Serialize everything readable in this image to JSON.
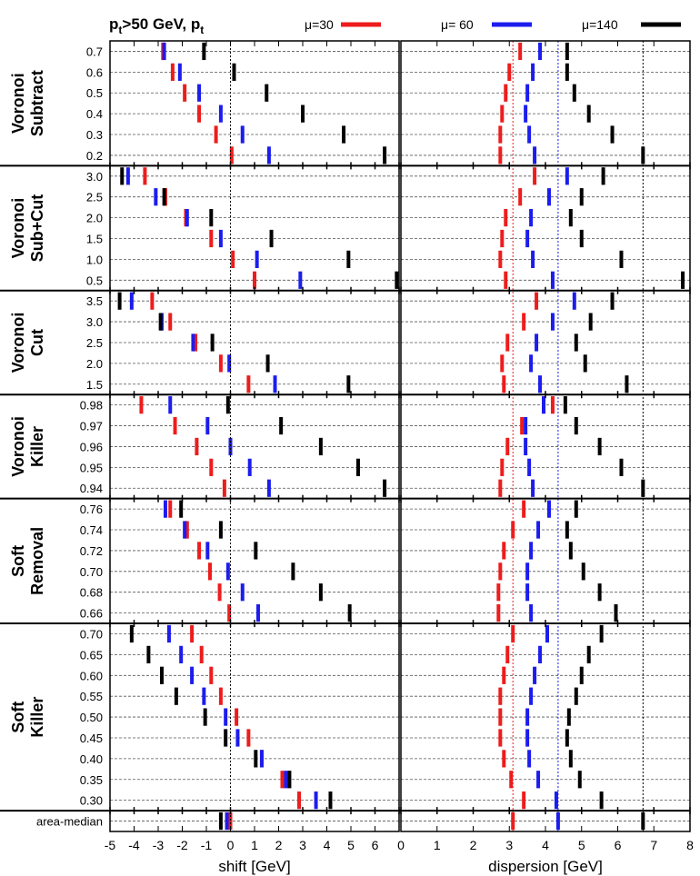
{
  "chart_data": {
    "type": "dot-plot",
    "title": "p_t>50 GeV, p_t",
    "title_main": "p",
    "title_sub1": "t",
    "title_mid": ">50 GeV, p",
    "title_sub2": "t",
    "legend": [
      {
        "label": "μ=30",
        "color": "#ee1c1c"
      },
      {
        "label": "μ= 60",
        "color": "#1c1cee"
      },
      {
        "label": "μ=140",
        "color": "#000000"
      }
    ],
    "panels": [
      {
        "name": "shift",
        "xlabel": "shift [GeV]",
        "xlim": [
          -5,
          7
        ],
        "tick_labels": [
          "-5",
          "-4",
          "-3",
          "-2",
          "-1",
          "0",
          "1",
          "2",
          "3",
          "4",
          "5",
          "6"
        ],
        "ref_lines": [
          {
            "x": 0,
            "color": "#000000"
          }
        ]
      },
      {
        "name": "dispersion",
        "xlabel": "dispersion [GeV]",
        "xlim": [
          0,
          8
        ],
        "tick_labels": [
          "0",
          "1",
          "2",
          "3",
          "4",
          "5",
          "6",
          "7",
          "8"
        ],
        "ref_lines": [
          {
            "x": 3.1,
            "color": "#ee1c1c"
          },
          {
            "x": 4.35,
            "color": "#1c1cee"
          },
          {
            "x": 6.7,
            "color": "#000000"
          }
        ]
      }
    ],
    "series": [
      {
        "name": "μ=30",
        "color": "#ee1c1c"
      },
      {
        "name": "μ= 60",
        "color": "#1c1cee"
      },
      {
        "name": "μ=140",
        "color": "#000000"
      }
    ],
    "groups": [
      {
        "label_lines": [
          "Voronoi",
          "Subtract"
        ],
        "rows": [
          {
            "param": "0.7",
            "shift": [
              -2.8,
              -2.75,
              -1.1
            ],
            "dispersion": [
              3.3,
              3.85,
              4.6
            ]
          },
          {
            "param": "0.6",
            "shift": [
              -2.4,
              -2.1,
              0.15
            ],
            "dispersion": [
              3.0,
              3.65,
              4.6
            ]
          },
          {
            "param": "0.5",
            "shift": [
              -1.9,
              -1.3,
              1.5
            ],
            "dispersion": [
              2.9,
              3.5,
              4.8
            ]
          },
          {
            "param": "0.4",
            "shift": [
              -1.3,
              -0.4,
              3.0
            ],
            "dispersion": [
              2.8,
              3.45,
              5.2
            ]
          },
          {
            "param": "0.3",
            "shift": [
              -0.6,
              0.5,
              4.7
            ],
            "dispersion": [
              2.75,
              3.55,
              5.85
            ]
          },
          {
            "param": "0.2",
            "shift": [
              0.05,
              1.6,
              6.4
            ],
            "dispersion": [
              2.75,
              3.7,
              6.7
            ]
          }
        ]
      },
      {
        "label_lines": [
          "Voronoi",
          "Sub+Cut"
        ],
        "rows": [
          {
            "param": "3.0",
            "shift": [
              -3.55,
              -4.25,
              -4.5
            ],
            "dispersion": [
              3.7,
              4.6,
              5.6
            ]
          },
          {
            "param": "2.5",
            "shift": [
              -2.7,
              -3.1,
              -2.75
            ],
            "dispersion": [
              3.3,
              4.1,
              5.0
            ]
          },
          {
            "param": "2.0",
            "shift": [
              -1.85,
              -1.8,
              -0.8
            ],
            "dispersion": [
              2.9,
              3.6,
              4.7
            ]
          },
          {
            "param": "1.5",
            "shift": [
              -0.8,
              -0.4,
              1.7
            ],
            "dispersion": [
              2.8,
              3.5,
              5.0
            ]
          },
          {
            "param": "1.0",
            "shift": [
              0.1,
              1.1,
              4.9
            ],
            "dispersion": [
              2.75,
              3.65,
              6.1
            ]
          },
          {
            "param": "0.5",
            "shift": [
              1.0,
              2.9,
              6.9
            ],
            "dispersion": [
              2.9,
              4.2,
              7.8
            ]
          }
        ]
      },
      {
        "label_lines": [
          "Voronoi",
          "Cut"
        ],
        "rows": [
          {
            "param": "3.5",
            "shift": [
              -3.25,
              -4.1,
              -4.6
            ],
            "dispersion": [
              3.75,
              4.8,
              5.85
            ]
          },
          {
            "param": "3.0",
            "shift": [
              -2.5,
              -2.85,
              -2.9
            ],
            "dispersion": [
              3.4,
              4.2,
              5.25
            ]
          },
          {
            "param": "2.5",
            "shift": [
              -1.45,
              -1.55,
              -0.75
            ],
            "dispersion": [
              2.95,
              3.75,
              4.85
            ]
          },
          {
            "param": "2.0",
            "shift": [
              -0.4,
              -0.05,
              1.55
            ],
            "dispersion": [
              2.8,
              3.6,
              5.1
            ]
          },
          {
            "param": "1.5",
            "shift": [
              0.75,
              1.85,
              4.9
            ],
            "dispersion": [
              2.85,
              3.85,
              6.25
            ]
          }
        ]
      },
      {
        "label_lines": [
          "Voronoi",
          "Killer"
        ],
        "rows": [
          {
            "param": "0.98",
            "shift": [
              -3.7,
              -2.5,
              -0.1
            ],
            "dispersion": [
              4.2,
              3.95,
              4.55
            ]
          },
          {
            "param": "0.97",
            "shift": [
              -2.3,
              -0.95,
              2.1
            ],
            "dispersion": [
              3.35,
              3.45,
              4.85
            ]
          },
          {
            "param": "0.96",
            "shift": [
              -1.4,
              0.0,
              3.75
            ],
            "dispersion": [
              2.95,
              3.45,
              5.5
            ]
          },
          {
            "param": "0.95",
            "shift": [
              -0.8,
              0.8,
              5.3
            ],
            "dispersion": [
              2.8,
              3.55,
              6.1
            ]
          },
          {
            "param": "0.94",
            "shift": [
              -0.25,
              1.6,
              6.4
            ],
            "dispersion": [
              2.75,
              3.65,
              6.7
            ]
          }
        ]
      },
      {
        "label_lines": [
          "Soft",
          "Removal"
        ],
        "rows": [
          {
            "param": "0.76",
            "shift": [
              -2.5,
              -2.7,
              -2.05
            ],
            "dispersion": [
              3.4,
              4.1,
              4.85
            ]
          },
          {
            "param": "0.74",
            "shift": [
              -1.8,
              -1.9,
              -0.4
            ],
            "dispersion": [
              3.1,
              3.8,
              4.6
            ]
          },
          {
            "param": "0.72",
            "shift": [
              -1.3,
              -0.95,
              1.05
            ],
            "dispersion": [
              2.85,
              3.6,
              4.7
            ]
          },
          {
            "param": "0.70",
            "shift": [
              -0.85,
              -0.1,
              2.6
            ],
            "dispersion": [
              2.75,
              3.5,
              5.05
            ]
          },
          {
            "param": "0.68",
            "shift": [
              -0.45,
              0.5,
              3.75
            ],
            "dispersion": [
              2.7,
              3.5,
              5.5
            ]
          },
          {
            "param": "0.66",
            "shift": [
              -0.05,
              1.15,
              4.95
            ],
            "dispersion": [
              2.7,
              3.6,
              5.95
            ]
          }
        ]
      },
      {
        "label_lines": [
          "Soft",
          "Killer"
        ],
        "rows": [
          {
            "param": "0.70",
            "shift": [
              -1.6,
              -2.55,
              -4.1
            ],
            "dispersion": [
              3.1,
              4.05,
              5.55
            ]
          },
          {
            "param": "0.65",
            "shift": [
              -1.2,
              -2.05,
              -3.4
            ],
            "dispersion": [
              2.95,
              3.85,
              5.2
            ]
          },
          {
            "param": "0.60",
            "shift": [
              -0.8,
              -1.6,
              -2.85
            ],
            "dispersion": [
              2.85,
              3.7,
              5.0
            ]
          },
          {
            "param": "0.55",
            "shift": [
              -0.4,
              -1.1,
              -2.25
            ],
            "dispersion": [
              2.75,
              3.6,
              4.85
            ]
          },
          {
            "param": "0.50",
            "shift": [
              0.25,
              -0.2,
              -1.05
            ],
            "dispersion": [
              2.75,
              3.5,
              4.65
            ]
          },
          {
            "param": "0.45",
            "shift": [
              0.75,
              0.3,
              -0.2
            ],
            "dispersion": [
              2.75,
              3.5,
              4.6
            ]
          },
          {
            "param": "0.40",
            "shift": [
              1.3,
              1.3,
              1.05
            ],
            "dispersion": [
              2.85,
              3.55,
              4.7
            ]
          },
          {
            "param": "0.35",
            "shift": [
              2.15,
              2.3,
              2.45
            ],
            "dispersion": [
              3.05,
              3.8,
              4.95
            ]
          },
          {
            "param": "0.30",
            "shift": [
              2.85,
              3.55,
              4.15
            ],
            "dispersion": [
              3.4,
              4.3,
              5.55
            ]
          }
        ]
      },
      {
        "label_lines": [],
        "rows": [
          {
            "param": "area-median",
            "shift": [
              0.0,
              -0.15,
              -0.4
            ],
            "dispersion": [
              3.1,
              4.35,
              6.7
            ]
          }
        ]
      }
    ]
  }
}
